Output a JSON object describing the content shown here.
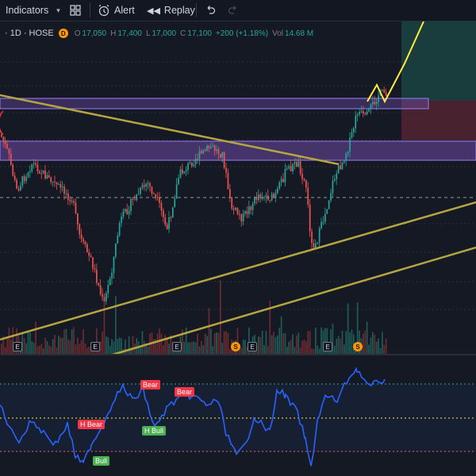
{
  "toolbar": {
    "indicators_label": "Indicators",
    "alert_label": "Alert",
    "replay_label": "Replay"
  },
  "legend": {
    "symbol": "· 1D · HOSE",
    "badge": "D",
    "o_key": "O",
    "o_val": "17,050",
    "h_key": "H",
    "h_val": "17,400",
    "l_key": "L",
    "l_val": "17,000",
    "c_key": "C",
    "c_val": "17,100",
    "change": "+200 (+1.18%)",
    "vol_key": "Vol",
    "vol_val": "14.68 M"
  },
  "events": [
    "E",
    "E",
    "E",
    "S",
    "E",
    "E",
    "S"
  ],
  "rsi_labels": {
    "bear_1": "Bear",
    "bear_2": "Bear",
    "h_bear": "H Bear",
    "h_bull": "H Bull",
    "bull": "Bull"
  },
  "colors": {
    "background": "#151924",
    "up_candle": "#26a69a",
    "down_candle": "#ef5350",
    "zone": "#7e57c2",
    "trendline": "#b5a642",
    "projection": "#ffeb3b",
    "rsi_line": "#2962ff"
  }
}
